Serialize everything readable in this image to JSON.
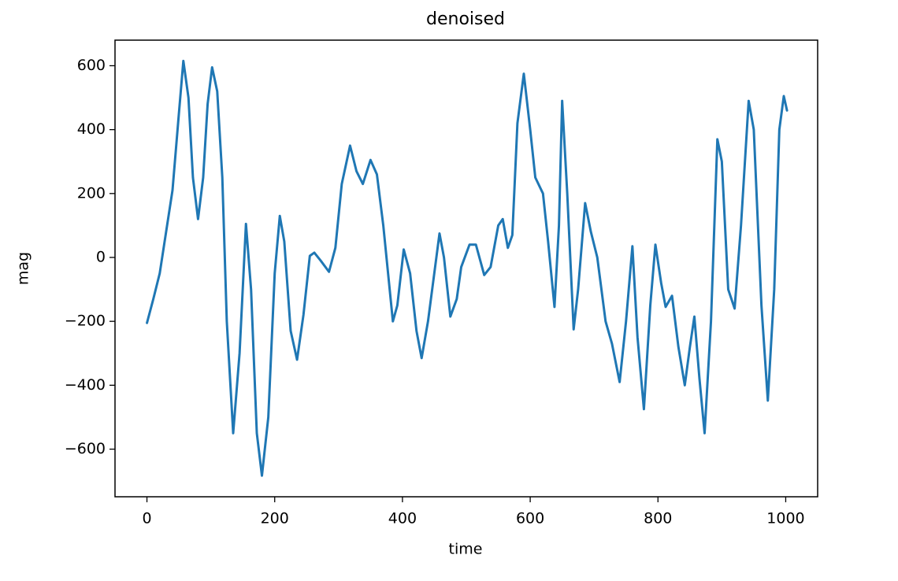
{
  "chart_data": {
    "type": "line",
    "title": "denoised",
    "x_label": "time",
    "y_label": "mag",
    "color": "#1f77b4",
    "x": [
      0,
      10,
      20,
      30,
      40,
      50,
      57,
      65,
      72,
      80,
      88,
      95,
      102,
      110,
      118,
      125,
      135,
      145,
      155,
      163,
      172,
      180,
      190,
      200,
      208,
      215,
      225,
      235,
      245,
      255,
      262,
      272,
      285,
      295,
      305,
      318,
      328,
      338,
      350,
      360,
      370,
      385,
      392,
      402,
      412,
      422,
      430,
      440,
      458,
      465,
      475,
      485,
      492,
      505,
      515,
      528,
      538,
      550,
      557,
      565,
      572,
      580,
      590,
      600,
      608,
      620,
      628,
      638,
      645,
      650,
      658,
      668,
      675,
      686,
      695,
      705,
      718,
      728,
      740,
      750,
      760,
      768,
      778,
      788,
      796,
      805,
      812,
      822,
      832,
      842,
      850,
      857,
      865,
      873,
      883,
      893,
      900,
      910,
      920,
      930,
      942,
      950,
      962,
      972,
      982,
      990,
      997,
      1002
    ],
    "values": [
      -205,
      -130,
      -50,
      80,
      210,
      450,
      615,
      500,
      250,
      120,
      250,
      480,
      595,
      520,
      250,
      -200,
      -550,
      -300,
      105,
      -100,
      -550,
      -683,
      -500,
      -50,
      130,
      50,
      -230,
      -320,
      -180,
      5,
      15,
      -10,
      -45,
      30,
      230,
      350,
      270,
      230,
      305,
      260,
      100,
      -200,
      -150,
      25,
      -50,
      -230,
      -315,
      -200,
      75,
      0,
      -185,
      -130,
      -30,
      40,
      40,
      -55,
      -30,
      100,
      120,
      30,
      70,
      420,
      575,
      400,
      250,
      200,
      50,
      -155,
      100,
      490,
      200,
      -225,
      -100,
      170,
      80,
      0,
      -200,
      -270,
      -390,
      -200,
      35,
      -250,
      -475,
      -150,
      40,
      -80,
      -155,
      -120,
      -280,
      -400,
      -280,
      -185,
      -380,
      -550,
      -200,
      370,
      300,
      -100,
      -160,
      100,
      490,
      400,
      -150,
      -448,
      -100,
      400,
      505,
      460
    ],
    "xlim": [
      -50,
      1050
    ],
    "ylim": [
      -749,
      680
    ],
    "xticks": [
      0,
      200,
      400,
      600,
      800,
      1000
    ],
    "yticks": [
      {
        "value": -600,
        "label": "−600"
      },
      {
        "value": -400,
        "label": "−400"
      },
      {
        "value": -200,
        "label": "−200"
      },
      0,
      200,
      400,
      600
    ]
  }
}
